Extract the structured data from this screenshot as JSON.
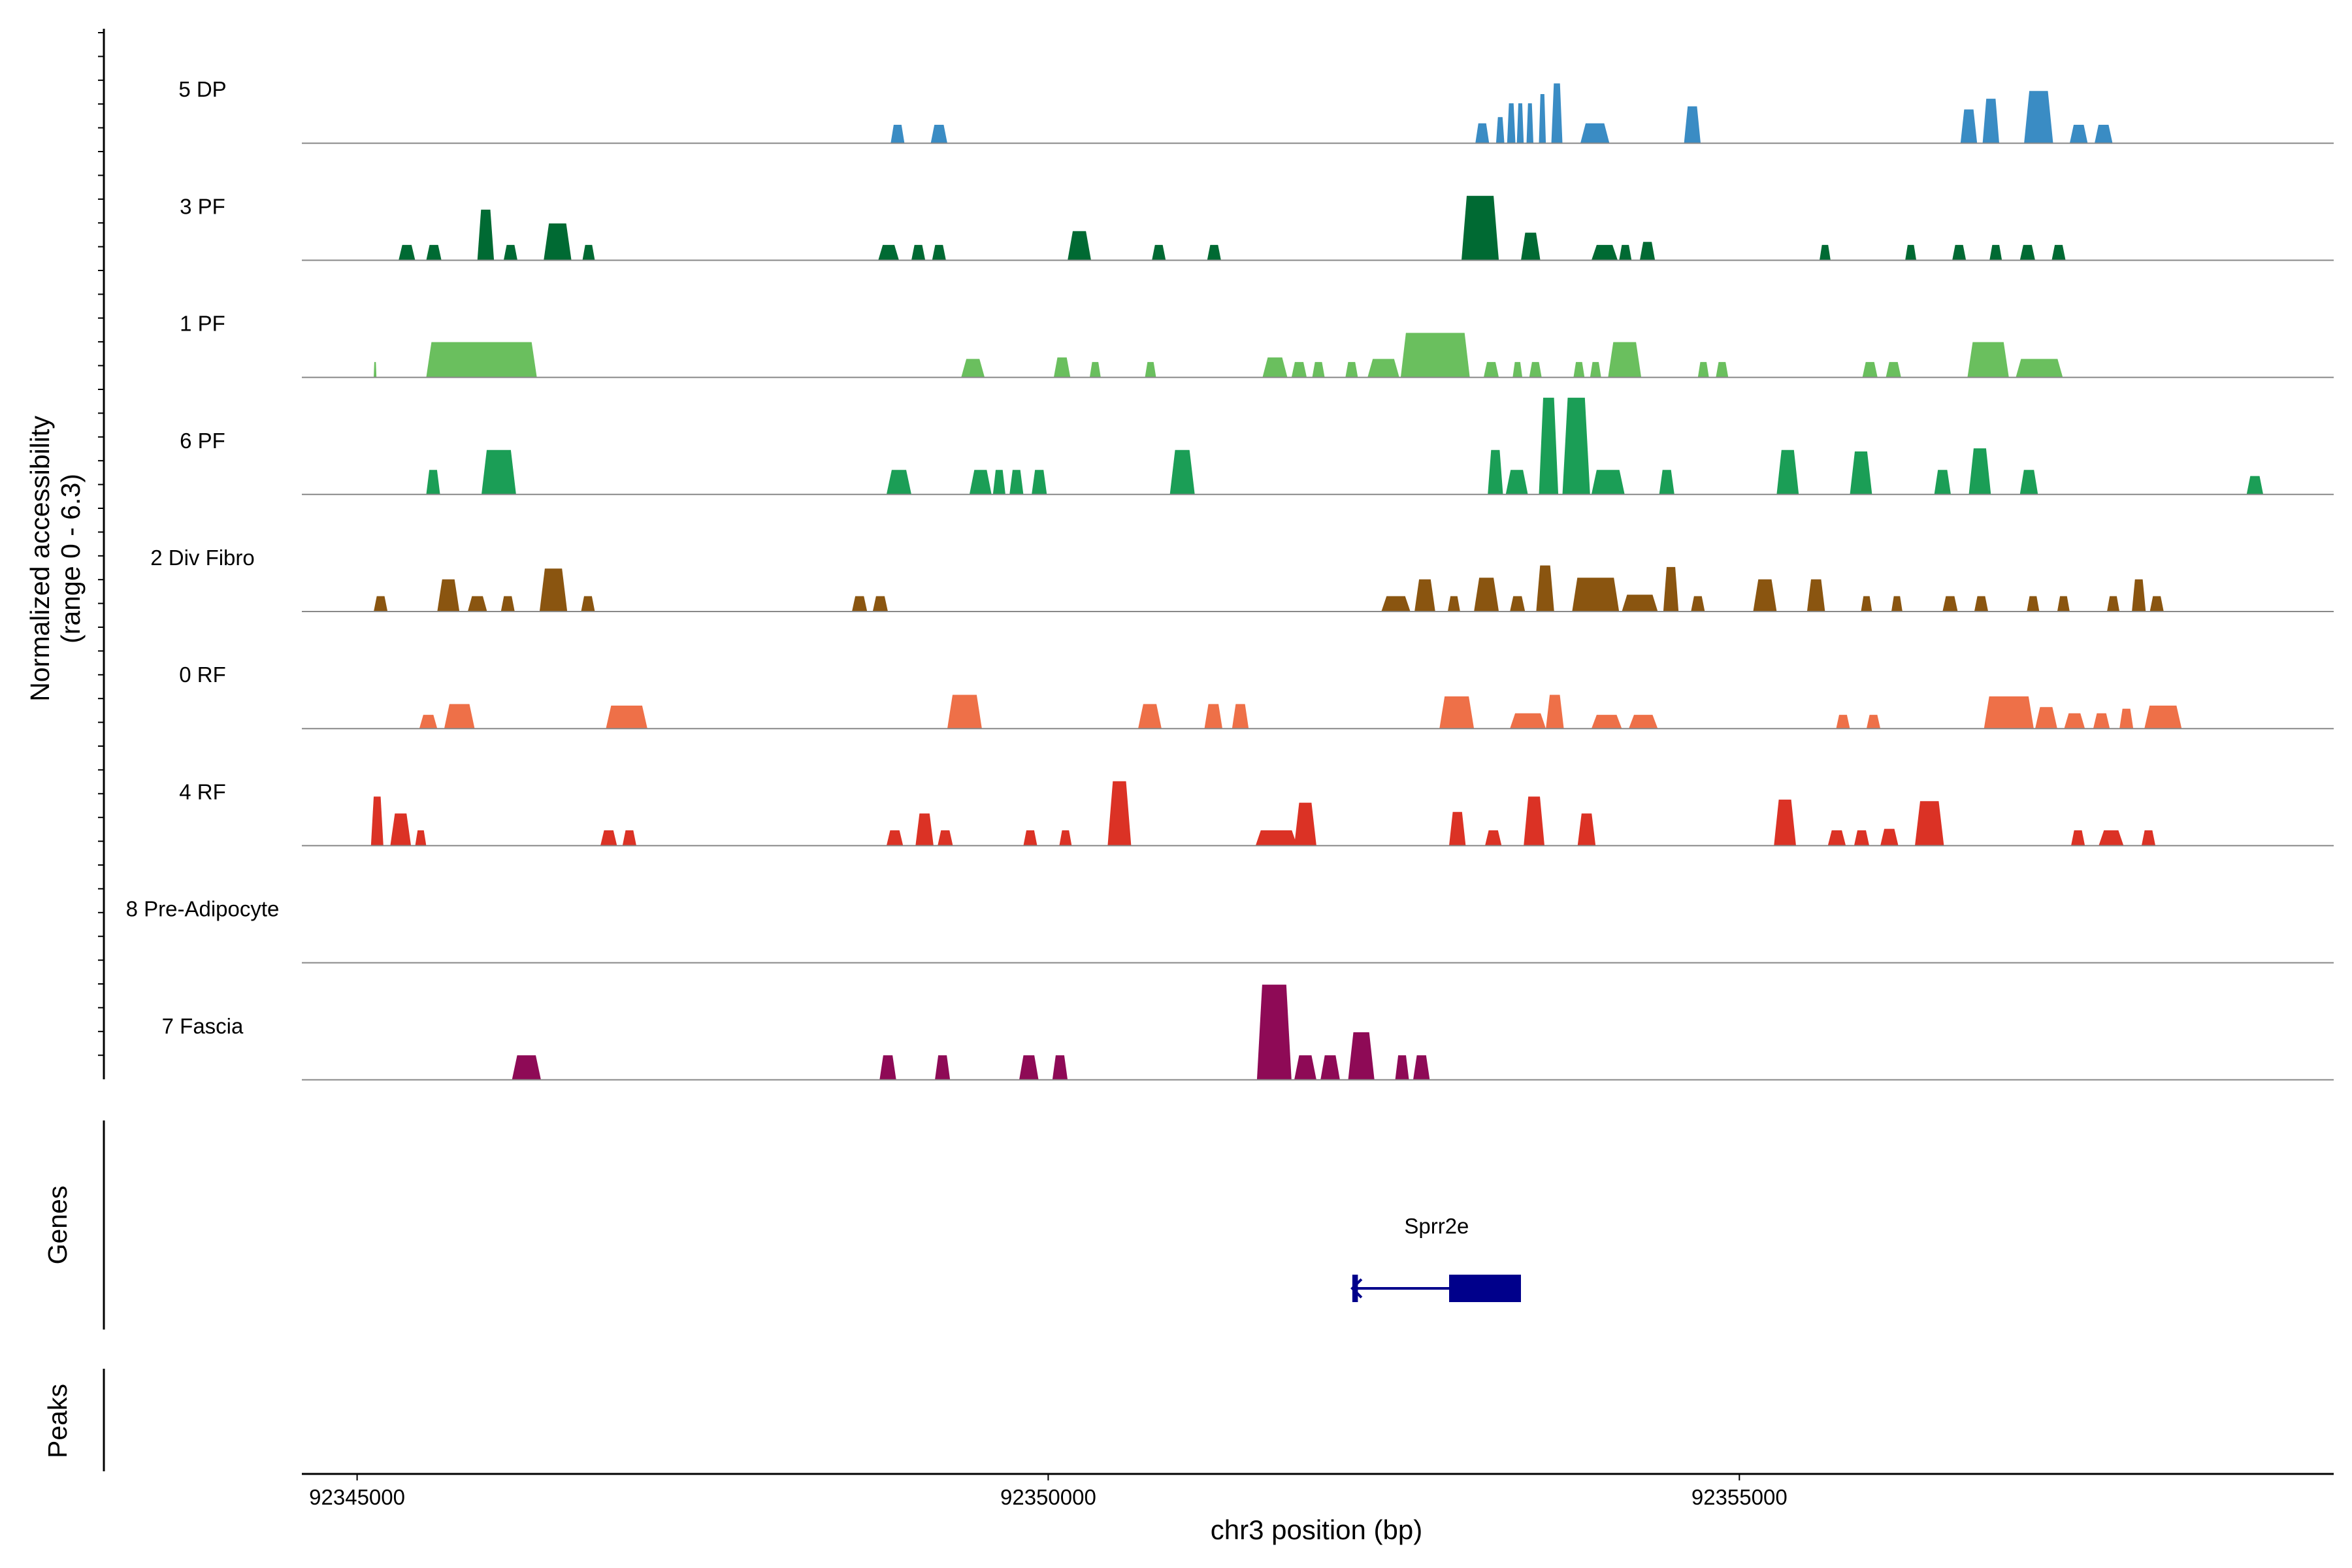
{
  "chart_data": {
    "type": "area",
    "title": "",
    "chromosome": "chr3",
    "xlabel": "chr3 position (bp)",
    "ylabel_line1": "Normalized accessibility",
    "ylabel_line2": "(range 0 - 6.3)",
    "y_range": [
      0,
      6.3
    ],
    "x_range": [
      92344600,
      92359300
    ],
    "x_ticks": [
      92345000,
      92350000,
      92355000
    ],
    "x_tick_labels": [
      "92345000",
      "92350000",
      "92355000"
    ],
    "genes_label": "Genes",
    "peaks_label": "Peaks",
    "gene": {
      "name": "Sprr2e",
      "strand": "-",
      "start": 92352200,
      "end": 92353420,
      "exons": [
        [
          92352200,
          92352240
        ],
        [
          92352900,
          92353420
        ]
      ],
      "color": "#00008B"
    },
    "series": [
      {
        "name": "5 DP",
        "color": "#3A8CC4",
        "peaks": [
          [
            92348860,
            92348960,
            1.2
          ],
          [
            92349150,
            92349270,
            1.2
          ],
          [
            92353090,
            92353190,
            1.3
          ],
          [
            92353240,
            92353300,
            1.7
          ],
          [
            92353320,
            92353380,
            2.6
          ],
          [
            92353390,
            92353440,
            2.6
          ],
          [
            92353460,
            92353510,
            2.6
          ],
          [
            92353550,
            92353600,
            3.2
          ],
          [
            92353640,
            92353720,
            3.9
          ],
          [
            92353850,
            92354060,
            1.3
          ],
          [
            92354600,
            92354720,
            2.4
          ],
          [
            92356600,
            92356720,
            2.2
          ],
          [
            92356760,
            92356880,
            2.9
          ],
          [
            92357060,
            92357270,
            3.4
          ],
          [
            92357390,
            92357520,
            1.2
          ],
          [
            92357570,
            92357700,
            1.2
          ]
        ]
      },
      {
        "name": "3 PF",
        "color": "#006A33",
        "peaks": [
          [
            92345300,
            92345420,
            1.0
          ],
          [
            92345500,
            92345610,
            1.0
          ],
          [
            92345870,
            92345990,
            3.3
          ],
          [
            92346060,
            92346160,
            1.0
          ],
          [
            92346350,
            92346550,
            2.4
          ],
          [
            92346630,
            92346720,
            1.0
          ],
          [
            92348770,
            92348920,
            1.0
          ],
          [
            92349010,
            92349110,
            1.0
          ],
          [
            92349160,
            92349260,
            1.0
          ],
          [
            92350140,
            92350310,
            1.9
          ],
          [
            92350750,
            92350850,
            1.0
          ],
          [
            92351150,
            92351250,
            1.0
          ],
          [
            92352990,
            92353260,
            4.2
          ],
          [
            92353420,
            92353560,
            1.8
          ],
          [
            92353930,
            92354120,
            1.0
          ],
          [
            92354130,
            92354220,
            1.0
          ],
          [
            92354280,
            92354390,
            1.2
          ],
          [
            92356810,
            92356900,
            1.0
          ],
          [
            92355580,
            92355660,
            1.0
          ],
          [
            92356200,
            92356280,
            1.0
          ],
          [
            92356540,
            92356640,
            1.0
          ],
          [
            92357030,
            92357140,
            1.0
          ],
          [
            92357260,
            92357360,
            1.0
          ]
        ]
      },
      {
        "name": "1 PF",
        "color": "#6ABF5E",
        "peaks": [
          [
            92345120,
            92345140,
            1.0
          ],
          [
            92345500,
            92346300,
            2.3
          ],
          [
            92349370,
            92349540,
            1.2
          ],
          [
            92350040,
            92350160,
            1.3
          ],
          [
            92350300,
            92350380,
            1.0
          ],
          [
            92350700,
            92350780,
            1.0
          ],
          [
            92351550,
            92351730,
            1.3
          ],
          [
            92351760,
            92351870,
            1.0
          ],
          [
            92351910,
            92352000,
            1.0
          ],
          [
            92352150,
            92352240,
            1.0
          ],
          [
            92352310,
            92352540,
            1.2
          ],
          [
            92352550,
            92353050,
            2.9
          ],
          [
            92353150,
            92353260,
            1.0
          ],
          [
            92353360,
            92353430,
            1.0
          ],
          [
            92353480,
            92353570,
            1.0
          ],
          [
            92353800,
            92353880,
            1.0
          ],
          [
            92353920,
            92354000,
            1.0
          ],
          [
            92354050,
            92354290,
            2.3
          ],
          [
            92354700,
            92354780,
            1.0
          ],
          [
            92354830,
            92354920,
            1.0
          ],
          [
            92355890,
            92356000,
            1.0
          ],
          [
            92356060,
            92356170,
            1.0
          ],
          [
            92356650,
            92356950,
            2.3
          ],
          [
            92357000,
            92357340,
            1.2
          ]
        ]
      },
      {
        "name": "6 PF",
        "color": "#1B9E56",
        "peaks": [
          [
            92345500,
            92345600,
            1.6
          ],
          [
            92345900,
            92346150,
            2.9
          ],
          [
            92348830,
            92349010,
            1.6
          ],
          [
            92349430,
            92349590,
            1.6
          ],
          [
            92349600,
            92349690,
            1.6
          ],
          [
            92349720,
            92349820,
            1.6
          ],
          [
            92349880,
            92349990,
            1.6
          ],
          [
            92350880,
            92351060,
            2.9
          ],
          [
            92353180,
            92353290,
            2.9
          ],
          [
            92353310,
            92353470,
            1.6
          ],
          [
            92353550,
            92353690,
            6.3
          ],
          [
            92353720,
            92353920,
            6.3
          ],
          [
            92353930,
            92354170,
            1.6
          ],
          [
            92354420,
            92354530,
            1.6
          ],
          [
            92355270,
            92355430,
            2.9
          ],
          [
            92355800,
            92355960,
            2.8
          ],
          [
            92356410,
            92356530,
            1.6
          ],
          [
            92356660,
            92356820,
            3.0
          ],
          [
            92357030,
            92357160,
            1.6
          ],
          [
            92358670,
            92358790,
            1.2
          ]
        ]
      },
      {
        "name": "2 Div Fibro",
        "color": "#8A5510",
        "peaks": [
          [
            92345120,
            92345220,
            1.0
          ],
          [
            92345580,
            92345740,
            2.1
          ],
          [
            92345800,
            92345940,
            1.0
          ],
          [
            92346040,
            92346140,
            1.0
          ],
          [
            92346320,
            92346520,
            2.8
          ],
          [
            92346620,
            92346720,
            1.0
          ],
          [
            92348580,
            92348690,
            1.0
          ],
          [
            92348730,
            92348840,
            1.0
          ],
          [
            92352410,
            92352620,
            1.0
          ],
          [
            92352650,
            92352800,
            2.1
          ],
          [
            92352890,
            92352980,
            1.0
          ],
          [
            92353080,
            92353260,
            2.2
          ],
          [
            92353340,
            92353450,
            1.0
          ],
          [
            92353530,
            92353660,
            3.0
          ],
          [
            92353790,
            92354130,
            2.2
          ],
          [
            92354150,
            92354410,
            1.1
          ],
          [
            92354450,
            92354560,
            2.9
          ],
          [
            92354650,
            92354750,
            1.0
          ],
          [
            92355100,
            92355270,
            2.1
          ],
          [
            92355490,
            92355620,
            2.1
          ],
          [
            92355880,
            92355960,
            1.0
          ],
          [
            92356100,
            92356180,
            1.0
          ],
          [
            92356470,
            92356580,
            1.0
          ],
          [
            92356700,
            92356800,
            1.0
          ],
          [
            92357080,
            92357170,
            1.0
          ],
          [
            92357300,
            92357390,
            1.0
          ],
          [
            92357660,
            92357750,
            1.0
          ],
          [
            92357840,
            92357940,
            2.1
          ],
          [
            92357970,
            92358070,
            1.0
          ]
        ]
      },
      {
        "name": "0 RF",
        "color": "#EE7048",
        "peaks": [
          [
            92345450,
            92345580,
            0.9
          ],
          [
            92345630,
            92345850,
            1.6
          ],
          [
            92346800,
            92347100,
            1.5
          ],
          [
            92349270,
            92349520,
            2.2
          ],
          [
            92350650,
            92350820,
            1.6
          ],
          [
            92351130,
            92351260,
            1.6
          ],
          [
            92351330,
            92351450,
            1.6
          ],
          [
            92352830,
            92353080,
            2.1
          ],
          [
            92353340,
            92353600,
            1.0
          ],
          [
            92353600,
            92353730,
            2.2
          ],
          [
            92353930,
            92354150,
            0.9
          ],
          [
            92354200,
            92354410,
            0.9
          ],
          [
            92355700,
            92355800,
            0.9
          ],
          [
            92355920,
            92356020,
            0.9
          ],
          [
            92356770,
            92357130,
            2.1
          ],
          [
            92357140,
            92357300,
            1.4
          ],
          [
            92357350,
            92357500,
            1.0
          ],
          [
            92357560,
            92357680,
            1.0
          ],
          [
            92357750,
            92357850,
            1.3
          ],
          [
            92357930,
            92358200,
            1.5
          ]
        ]
      },
      {
        "name": "4 RF",
        "color": "#DB3225",
        "peaks": [
          [
            92345100,
            92345190,
            3.2
          ],
          [
            92345240,
            92345390,
            2.1
          ],
          [
            92345420,
            92345500,
            1.0
          ],
          [
            92346760,
            92346880,
            1.0
          ],
          [
            92346920,
            92347020,
            1.0
          ],
          [
            92348830,
            92348950,
            1.0
          ],
          [
            92349040,
            92349170,
            2.1
          ],
          [
            92349200,
            92349310,
            1.0
          ],
          [
            92349820,
            92349920,
            1.0
          ],
          [
            92350080,
            92350170,
            1.0
          ],
          [
            92350430,
            92350600,
            4.2
          ],
          [
            92351500,
            92351800,
            1.0
          ],
          [
            92351780,
            92351940,
            2.8
          ],
          [
            92352900,
            92353020,
            2.2
          ],
          [
            92353160,
            92353280,
            1.0
          ],
          [
            92353440,
            92353590,
            3.2
          ],
          [
            92353830,
            92353960,
            2.1
          ],
          [
            92355250,
            92355410,
            3.0
          ],
          [
            92355640,
            92355770,
            1.0
          ],
          [
            92355830,
            92355940,
            1.0
          ],
          [
            92356020,
            92356150,
            1.1
          ],
          [
            92356270,
            92356480,
            2.9
          ],
          [
            92357400,
            92357500,
            1.0
          ],
          [
            92357600,
            92357780,
            1.0
          ],
          [
            92357910,
            92358010,
            1.0
          ]
        ]
      },
      {
        "name": "8 Pre-Adipocyte",
        "color": "#333333",
        "peaks": []
      },
      {
        "name": "7 Fascia",
        "color": "#8E0A56",
        "peaks": [
          [
            92346120,
            92346330,
            1.6
          ],
          [
            92348780,
            92348900,
            1.6
          ],
          [
            92349180,
            92349290,
            1.6
          ],
          [
            92349790,
            92349930,
            1.6
          ],
          [
            92350030,
            92350140,
            1.6
          ],
          [
            92351510,
            92351760,
            6.2
          ],
          [
            92351780,
            92351940,
            1.6
          ],
          [
            92351970,
            92352110,
            1.6
          ],
          [
            92352170,
            92352360,
            3.1
          ],
          [
            92352510,
            92352610,
            1.6
          ],
          [
            92352640,
            92352760,
            1.6
          ]
        ]
      }
    ]
  }
}
